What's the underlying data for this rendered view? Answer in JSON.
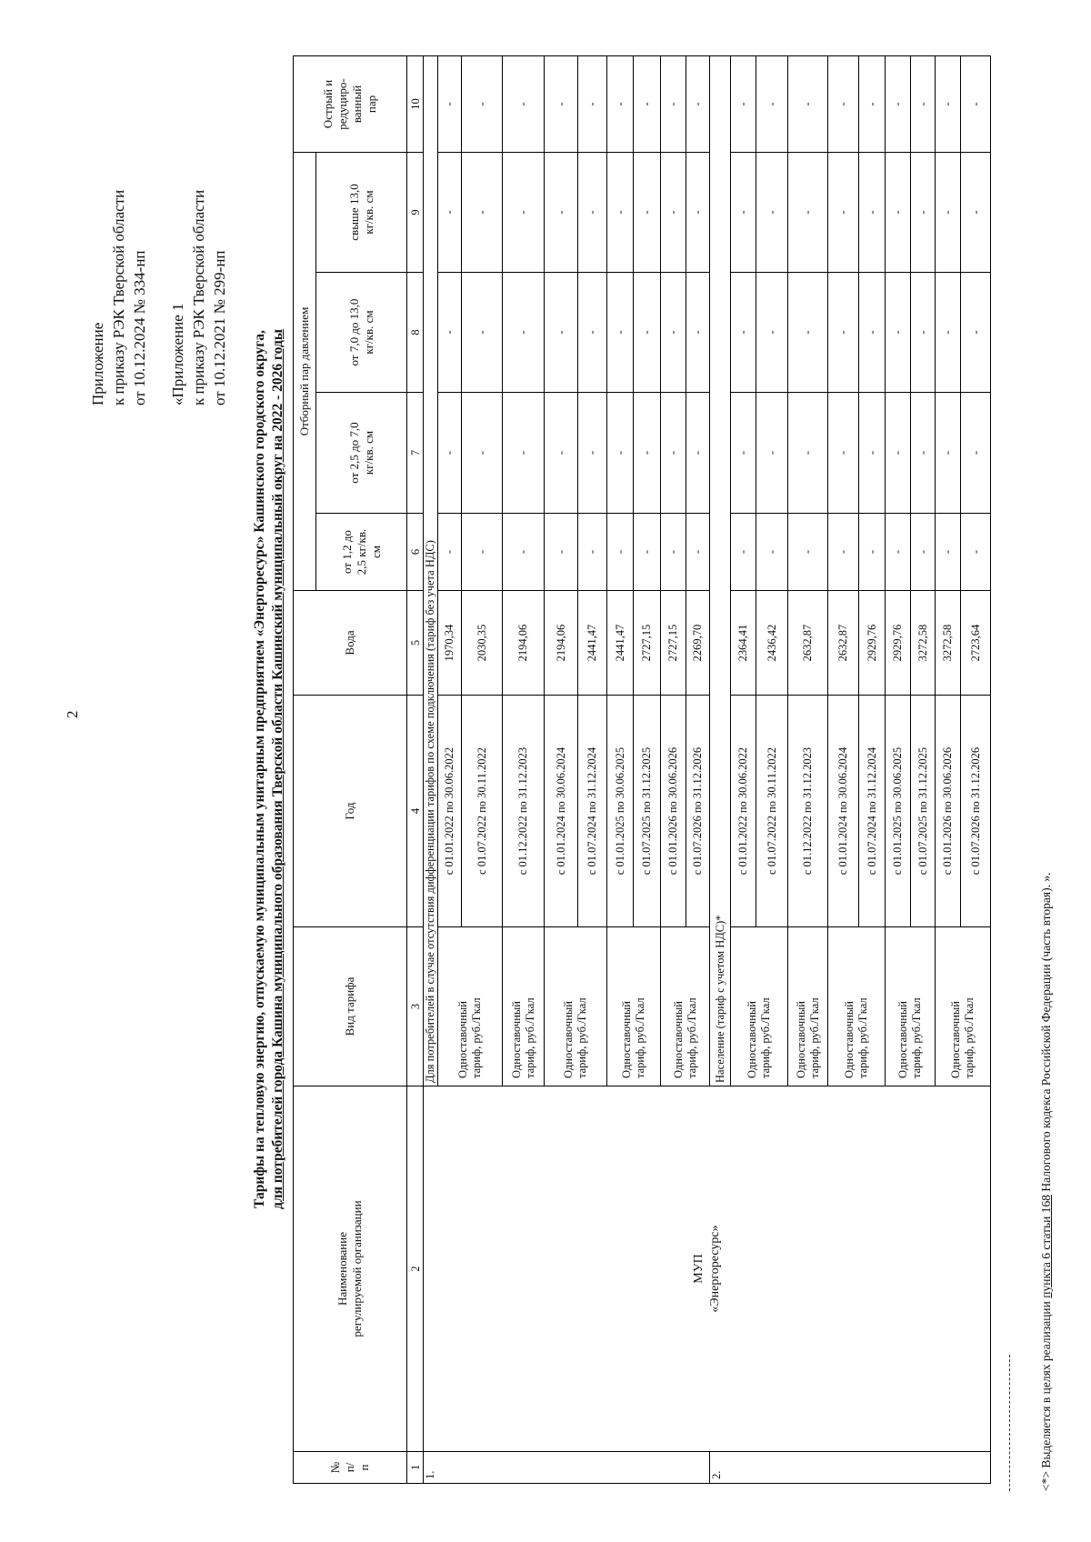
{
  "page_number": "2",
  "appendix_current": {
    "line1": "Приложение",
    "line2": "к приказу РЭК Тверской области",
    "line3": "от 10.12.2024 № 334-нп"
  },
  "appendix_prior": {
    "line1": "«Приложение 1",
    "line2": "к приказу РЭК Тверской области",
    "line3": "от 10.12.2021 № 299-нп"
  },
  "title": {
    "line1": "Тарифы на тепловую энергию, отпускаемую муниципальным унитарным предприятием «Энергоресурс» Кашинского городского округа,",
    "line2": "для потребителей города Кашина муниципального образования Тверской области Кашинский муниципальный округ на 2022 - 2026 годы"
  },
  "table": {
    "headers": {
      "number": "№\nп/\nп",
      "organization": "Наименование\nрегулируемой организации",
      "tariff_type": "Вид тарифа",
      "year": "Год",
      "water": "Вода",
      "steam_group": "Отборный пар давлением",
      "steam_1": "от 1,2 до\n2,5 кг/кв.\nсм",
      "steam_2": "от 2,5 до 7,0\nкг/кв. см",
      "steam_3": "от 7,0 до 13,0\nкг/кв. см",
      "steam_4": "свыше 13,0\nкг/кв. см",
      "sharp_steam": "Острый и\nредуциро-\nванный\nпар"
    },
    "column_numbers": [
      "1",
      "2",
      "3",
      "4",
      "5",
      "6",
      "7",
      "8",
      "9",
      "10"
    ],
    "organization": "МУП\n«Энергоресурс»",
    "sections": [
      {
        "number": "1.",
        "label": "Для потребителей в случае отсутствия дифференциации тарифов по схеме подключения (тариф без учета НДС)",
        "groups": [
          {
            "tariff_type": "Одноставочный\nтариф, руб./Гкал",
            "rows": [
              {
                "period": "с 01.01.2022 по 30.06.2022",
                "water": "1970,34",
                "other": [
                  "-",
                  "-",
                  "-",
                  "-",
                  "-"
                ]
              },
              {
                "period": "с 01.07.2022 по 30.11.2022",
                "water": "2030,35",
                "other": [
                  "-",
                  "-",
                  "-",
                  "-",
                  "-"
                ]
              }
            ]
          },
          {
            "tariff_type": "Одноставочный\nтариф, руб./Гкал",
            "rows": [
              {
                "period": "с 01.12.2022 по 31.12.2023",
                "water": "2194,06",
                "other": [
                  "-",
                  "-",
                  "-",
                  "-",
                  "-"
                ]
              }
            ]
          },
          {
            "tariff_type": "Одноставочный\nтариф, руб./Гкал",
            "rows": [
              {
                "period": "с 01.01.2024 по 30.06.2024",
                "water": "2194,06",
                "other": [
                  "-",
                  "-",
                  "-",
                  "-",
                  "-"
                ]
              },
              {
                "period": "с 01.07.2024 по 31.12.2024",
                "water": "2441,47",
                "other": [
                  "-",
                  "-",
                  "-",
                  "-",
                  "-"
                ]
              }
            ]
          },
          {
            "tariff_type": "Одноставочный\nтариф, руб./Гкал",
            "rows": [
              {
                "period": "с 01.01.2025 по 30.06.2025",
                "water": "2441,47",
                "other": [
                  "-",
                  "-",
                  "-",
                  "-",
                  "-"
                ]
              },
              {
                "period": "с 01.07.2025 по 31.12.2025",
                "water": "2727,15",
                "other": [
                  "-",
                  "-",
                  "-",
                  "-",
                  "-"
                ]
              }
            ]
          },
          {
            "tariff_type": "Одноставочный\nтариф, руб./Гкал",
            "rows": [
              {
                "period": "с 01.01.2026 по 30.06.2026",
                "water": "2727,15",
                "other": [
                  "-",
                  "-",
                  "-",
                  "-",
                  "-"
                ]
              },
              {
                "period": "с 01.07.2026 по 31.12.2026",
                "water": "2269,70",
                "other": [
                  "-",
                  "-",
                  "-",
                  "-",
                  "-"
                ]
              }
            ]
          }
        ]
      },
      {
        "number": "2.",
        "label": "Население (тариф с учетом НДС)*",
        "groups": [
          {
            "tariff_type": "Одноставочный\nтариф, руб./Гкал",
            "rows": [
              {
                "period": "с 01.01.2022 по 30.06.2022",
                "water": "2364,41",
                "other": [
                  "-",
                  "-",
                  "-",
                  "-",
                  "-"
                ]
              },
              {
                "period": "с 01.07.2022 по 30.11.2022",
                "water": "2436,42",
                "other": [
                  "-",
                  "-",
                  "-",
                  "-",
                  "-"
                ]
              }
            ]
          },
          {
            "tariff_type": "Одноставочный\nтариф, руб./Гкал",
            "rows": [
              {
                "period": "с 01.12.2022 по 31.12.2023",
                "water": "2632,87",
                "other": [
                  "-",
                  "-",
                  "-",
                  "-",
                  "-"
                ]
              }
            ]
          },
          {
            "tariff_type": "Одноставочный\nтариф, руб./Гкал",
            "rows": [
              {
                "period": "с 01.01.2024 по 30.06.2024",
                "water": "2632,87",
                "other": [
                  "-",
                  "-",
                  "-",
                  "-",
                  "-"
                ]
              },
              {
                "period": "с 01.07.2024 по 31.12.2024",
                "water": "2929,76",
                "other": [
                  "-",
                  "-",
                  "-",
                  "-",
                  "-"
                ]
              }
            ]
          },
          {
            "tariff_type": "Одноставочный\nтариф, руб./Гкал",
            "rows": [
              {
                "period": "с 01.01.2025 по 30.06.2025",
                "water": "2929,76",
                "other": [
                  "-",
                  "-",
                  "-",
                  "-",
                  "-"
                ]
              },
              {
                "period": "с 01.07.2025 по 31.12.2025",
                "water": "3272,58",
                "other": [
                  "-",
                  "-",
                  "-",
                  "-",
                  "-"
                ]
              }
            ]
          },
          {
            "tariff_type": "Одноставочный\nтариф, руб./Гкал",
            "rows": [
              {
                "period": "с 01.01.2026 по 30.06.2026",
                "water": "3272,58",
                "other": [
                  "-",
                  "-",
                  "-",
                  "-",
                  "-"
                ]
              },
              {
                "period": "с 01.07.2026 по 31.12.2026",
                "water": "2723,64",
                "other": [
                  "-",
                  "-",
                  "-",
                  "-",
                  "-"
                ]
              }
            ]
          }
        ]
      }
    ]
  },
  "footnote": {
    "prefix": "<*> Выделяется в целях реализации ",
    "reference": "пункта 6 статьи 168",
    "suffix": " Налогового кодекса Российской Федерации (часть вторая). »."
  }
}
